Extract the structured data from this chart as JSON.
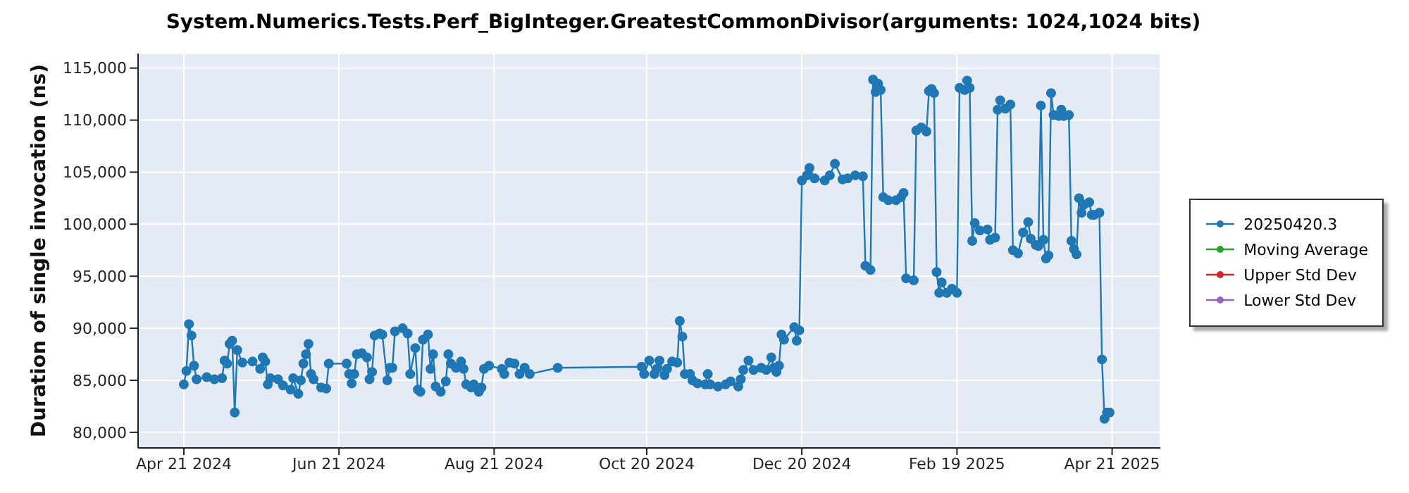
{
  "chart_data": {
    "type": "line",
    "title": "System.Numerics.Tests.Perf_BigInteger.GreatestCommonDivisor(arguments: 1024,1024 bits)",
    "ylabel": "Duration of single invocation (ns)",
    "x": [
      "2024-04-21",
      "2024-04-22",
      "2024-04-23",
      "2024-04-24",
      "2024-04-25",
      "2024-04-26",
      "2024-04-30",
      "2024-05-03",
      "2024-05-06",
      "2024-05-07",
      "2024-05-08",
      "2024-05-09",
      "2024-05-10",
      "2024-05-11",
      "2024-05-12",
      "2024-05-14",
      "2024-05-18",
      "2024-05-21",
      "2024-05-22",
      "2024-05-23",
      "2024-05-24",
      "2024-05-25",
      "2024-05-28",
      "2024-05-30",
      "2024-06-02",
      "2024-06-03",
      "2024-06-05",
      "2024-06-06",
      "2024-06-07",
      "2024-06-08",
      "2024-06-09",
      "2024-06-10",
      "2024-06-11",
      "2024-06-14",
      "2024-06-16",
      "2024-06-17",
      "2024-06-24",
      "2024-06-25",
      "2024-06-26",
      "2024-06-27",
      "2024-06-28",
      "2024-06-30",
      "2024-07-02",
      "2024-07-03",
      "2024-07-04",
      "2024-07-05",
      "2024-07-07",
      "2024-07-08",
      "2024-07-10",
      "2024-07-11",
      "2024-07-12",
      "2024-07-13",
      "2024-07-16",
      "2024-07-18",
      "2024-07-19",
      "2024-07-21",
      "2024-07-22",
      "2024-07-23",
      "2024-07-24",
      "2024-07-26",
      "2024-07-27",
      "2024-07-28",
      "2024-07-29",
      "2024-07-31",
      "2024-08-02",
      "2024-08-03",
      "2024-08-04",
      "2024-08-06",
      "2024-08-08",
      "2024-08-09",
      "2024-08-10",
      "2024-08-12",
      "2024-08-13",
      "2024-08-15",
      "2024-08-16",
      "2024-08-17",
      "2024-08-19",
      "2024-08-24",
      "2024-08-25",
      "2024-08-27",
      "2024-08-29",
      "2024-08-31",
      "2024-09-02",
      "2024-09-04",
      "2024-09-15",
      "2024-10-18",
      "2024-10-19",
      "2024-10-21",
      "2024-10-23",
      "2024-10-24",
      "2024-10-25",
      "2024-10-27",
      "2024-10-28",
      "2024-10-30",
      "2024-11-01",
      "2024-11-02",
      "2024-11-03",
      "2024-11-04",
      "2024-11-06",
      "2024-11-07",
      "2024-11-09",
      "2024-11-12",
      "2024-11-13",
      "2024-11-14",
      "2024-11-17",
      "2024-11-20",
      "2024-11-22",
      "2024-11-25",
      "2024-11-26",
      "2024-11-27",
      "2024-11-29",
      "2024-12-01",
      "2024-12-04",
      "2024-12-06",
      "2024-12-08",
      "2024-12-09",
      "2024-12-10",
      "2024-12-11",
      "2024-12-12",
      "2024-12-13",
      "2024-12-17",
      "2024-12-18",
      "2024-12-19",
      "2024-12-20",
      "2024-12-22",
      "2024-12-23",
      "2024-12-25",
      "2024-12-29",
      "2024-12-31",
      "2025-01-02",
      "2025-01-05",
      "2025-01-07",
      "2025-01-10",
      "2025-01-13",
      "2025-01-14",
      "2025-01-16",
      "2025-01-17",
      "2025-01-18",
      "2025-01-19",
      "2025-01-20",
      "2025-01-21",
      "2025-01-23",
      "2025-01-26",
      "2025-01-28",
      "2025-01-29",
      "2025-01-30",
      "2025-02-02",
      "2025-02-03",
      "2025-02-05",
      "2025-02-07",
      "2025-02-08",
      "2025-02-09",
      "2025-02-10",
      "2025-02-11",
      "2025-02-12",
      "2025-02-13",
      "2025-02-15",
      "2025-02-17",
      "2025-02-19",
      "2025-02-20",
      "2025-02-22",
      "2025-02-23",
      "2025-02-24",
      "2025-02-25",
      "2025-02-26",
      "2025-02-28",
      "2025-03-03",
      "2025-03-04",
      "2025-03-06",
      "2025-03-07",
      "2025-03-08",
      "2025-03-10",
      "2025-03-12",
      "2025-03-13",
      "2025-03-15",
      "2025-03-17",
      "2025-03-19",
      "2025-03-20",
      "2025-03-22",
      "2025-03-23",
      "2025-03-24",
      "2025-03-25",
      "2025-03-26",
      "2025-03-27",
      "2025-03-28",
      "2025-03-29",
      "2025-03-31",
      "2025-04-01",
      "2025-04-02",
      "2025-04-04",
      "2025-04-05",
      "2025-04-06",
      "2025-04-07",
      "2025-04-08",
      "2025-04-09",
      "2025-04-10",
      "2025-04-12",
      "2025-04-13",
      "2025-04-14",
      "2025-04-16",
      "2025-04-17",
      "2025-04-18",
      "2025-04-19",
      "2025-04-20"
    ],
    "series": [
      {
        "name": "20250420.3",
        "color": "#1f77b4",
        "values": [
          84600,
          85900,
          90400,
          89300,
          86400,
          85100,
          85300,
          85100,
          85200,
          86900,
          86600,
          88500,
          88800,
          81900,
          87900,
          86700,
          86800,
          86100,
          87200,
          86800,
          84600,
          85200,
          85100,
          84500,
          84100,
          85200,
          83700,
          85000,
          86600,
          87500,
          88500,
          85600,
          85100,
          84300,
          84200,
          86600,
          86600,
          85600,
          84700,
          85600,
          87500,
          87600,
          87200,
          85100,
          85800,
          89300,
          89500,
          89400,
          85000,
          86200,
          86200,
          89700,
          90000,
          89500,
          85600,
          88100,
          84100,
          83900,
          88900,
          89400,
          86100,
          87500,
          84400,
          83900,
          84900,
          87500,
          86600,
          86200,
          86800,
          86100,
          84600,
          84300,
          84600,
          83900,
          84300,
          86100,
          86400,
          86100,
          85600,
          86700,
          86600,
          85600,
          86200,
          85600,
          86200,
          86300,
          85600,
          86900,
          85600,
          86100,
          86900,
          85500,
          86100,
          86800,
          86700,
          90700,
          89200,
          85600,
          85600,
          85000,
          84700,
          84600,
          85600,
          84600,
          84400,
          84600,
          84900,
          84400,
          85100,
          86000,
          86900,
          86000,
          86200,
          86000,
          87200,
          86200,
          85800,
          86400,
          89400,
          88900,
          90100,
          88800,
          89800,
          104200,
          104700,
          105400,
          104400,
          104200,
          104700,
          105800,
          104300,
          104400,
          104700,
          104600,
          96000,
          95600,
          113900,
          112700,
          113500,
          112900,
          102600,
          102300,
          102300,
          102600,
          103000,
          94800,
          94600,
          109000,
          109300,
          108900,
          112800,
          113000,
          112600,
          95400,
          93400,
          94400,
          93400,
          93800,
          93400,
          113100,
          112900,
          113800,
          113100,
          98400,
          100100,
          99400,
          99500,
          98500,
          98700,
          111000,
          111900,
          111100,
          111500,
          97500,
          97200,
          99200,
          100200,
          98600,
          98000,
          97900,
          111400,
          98500,
          96700,
          97000,
          112600,
          110500,
          110400,
          111000,
          110400,
          110500,
          98400,
          97600,
          97100,
          102500,
          101100,
          101900,
          102100,
          100900,
          100900,
          101100,
          87000,
          81300,
          81900,
          81900
        ]
      },
      {
        "name": "Moving Average",
        "color": "#2ca02c",
        "values": [
          null,
          null,
          null,
          null,
          null,
          null,
          null,
          null,
          null,
          null,
          null,
          null,
          null,
          null,
          null,
          null,
          null,
          null,
          null,
          null,
          null,
          null,
          null,
          null,
          null,
          null,
          null,
          null,
          null,
          null,
          null,
          null,
          null,
          null,
          null,
          null,
          null,
          null,
          null,
          null,
          null,
          null,
          null,
          null,
          null,
          null,
          null,
          null,
          null,
          null,
          null,
          null,
          null,
          null,
          null,
          null,
          null,
          null,
          null,
          null,
          null,
          null,
          null,
          null,
          null,
          null,
          null,
          null,
          null,
          null,
          null,
          null,
          null,
          null,
          null,
          null,
          null,
          null,
          null,
          null,
          null,
          null,
          null,
          null,
          null,
          null,
          null,
          null,
          null,
          null,
          null,
          null,
          null,
          null,
          null,
          null,
          null,
          null,
          null,
          null,
          null,
          null,
          null,
          null,
          null,
          null,
          null,
          null,
          null,
          null,
          null,
          null,
          null,
          null,
          null,
          null,
          null,
          null,
          null,
          null,
          null,
          null,
          null,
          null,
          null,
          null,
          null,
          null,
          null,
          null,
          null,
          null,
          null,
          null,
          null,
          null,
          null,
          null,
          null,
          null,
          null,
          null,
          null,
          null,
          null,
          null,
          null,
          null,
          null,
          null,
          null,
          null,
          null,
          null,
          null,
          null,
          null,
          null,
          null,
          null,
          null,
          null,
          null,
          null,
          null,
          null,
          null,
          null,
          null,
          null,
          null,
          null,
          null,
          null,
          null,
          null,
          null,
          null,
          null,
          null,
          null,
          null,
          null,
          null,
          null,
          null,
          null,
          null,
          null,
          null,
          null,
          null,
          null,
          null,
          null,
          null,
          null,
          null,
          null,
          null,
          null,
          null,
          null,
          null
        ]
      },
      {
        "name": "Upper Std Dev",
        "color": "#d62728",
        "values": [
          null,
          null,
          null,
          null,
          null,
          null,
          null,
          null,
          null,
          null,
          null,
          null,
          null,
          null,
          null,
          null,
          null,
          null,
          null,
          null,
          null,
          null,
          null,
          null,
          null,
          null,
          null,
          null,
          null,
          null,
          null,
          null,
          null,
          null,
          null,
          null,
          null,
          null,
          null,
          null,
          null,
          null,
          null,
          null,
          null,
          null,
          null,
          null,
          null,
          null,
          null,
          null,
          null,
          null,
          null,
          null,
          null,
          null,
          null,
          null,
          null,
          null,
          null,
          null,
          null,
          null,
          null,
          null,
          null,
          null,
          null,
          null,
          null,
          null,
          null,
          null,
          null,
          null,
          null,
          null,
          null,
          null,
          null,
          null,
          null,
          null,
          null,
          null,
          null,
          null,
          null,
          null,
          null,
          null,
          null,
          null,
          null,
          null,
          null,
          null,
          null,
          null,
          null,
          null,
          null,
          null,
          null,
          null,
          null,
          null,
          null,
          null,
          null,
          null,
          null,
          null,
          null,
          null,
          null,
          null,
          null,
          null,
          null,
          null,
          null,
          null,
          null,
          null,
          null,
          null,
          null,
          null,
          null,
          null,
          null,
          null,
          null,
          null,
          null,
          null,
          null,
          null,
          null,
          null,
          null,
          null,
          null,
          null,
          null,
          null,
          null,
          null,
          null,
          null,
          null,
          null,
          null,
          null,
          null,
          null,
          null,
          null,
          null,
          null,
          null,
          null,
          null,
          null,
          null,
          null,
          null,
          null,
          null,
          null,
          null,
          null,
          null,
          null,
          null,
          null,
          null,
          null,
          null,
          null,
          null,
          null,
          null,
          null,
          null,
          null,
          null,
          null,
          null,
          null,
          null,
          null,
          null,
          null,
          null,
          null,
          null,
          null,
          null,
          null
        ]
      },
      {
        "name": "Lower Std Dev",
        "color": "#9467bd",
        "values": [
          null,
          null,
          null,
          null,
          null,
          null,
          null,
          null,
          null,
          null,
          null,
          null,
          null,
          null,
          null,
          null,
          null,
          null,
          null,
          null,
          null,
          null,
          null,
          null,
          null,
          null,
          null,
          null,
          null,
          null,
          null,
          null,
          null,
          null,
          null,
          null,
          null,
          null,
          null,
          null,
          null,
          null,
          null,
          null,
          null,
          null,
          null,
          null,
          null,
          null,
          null,
          null,
          null,
          null,
          null,
          null,
          null,
          null,
          null,
          null,
          null,
          null,
          null,
          null,
          null,
          null,
          null,
          null,
          null,
          null,
          null,
          null,
          null,
          null,
          null,
          null,
          null,
          null,
          null,
          null,
          null,
          null,
          null,
          null,
          null,
          null,
          null,
          null,
          null,
          null,
          null,
          null,
          null,
          null,
          null,
          null,
          null,
          null,
          null,
          null,
          null,
          null,
          null,
          null,
          null,
          null,
          null,
          null,
          null,
          null,
          null,
          null,
          null,
          null,
          null,
          null,
          null,
          null,
          null,
          null,
          null,
          null,
          null,
          null,
          null,
          null,
          null,
          null,
          null,
          null,
          null,
          null,
          null,
          null,
          null,
          null,
          null,
          null,
          null,
          null,
          null,
          null,
          null,
          null,
          null,
          null,
          null,
          null,
          null,
          null,
          null,
          null,
          null,
          null,
          null,
          null,
          null,
          null,
          null,
          null,
          null,
          null,
          null,
          null,
          null,
          null,
          null,
          null,
          null,
          null,
          null,
          null,
          null,
          null,
          null,
          null,
          null,
          null,
          null,
          null,
          null,
          null,
          null,
          null,
          null,
          null,
          null,
          null,
          null,
          null,
          null,
          null,
          null,
          null,
          null,
          null,
          null,
          null,
          null,
          null,
          null,
          null,
          null,
          null
        ]
      }
    ],
    "xlim": [
      "2024-04-03",
      "2025-05-10"
    ],
    "xticks": [
      {
        "value": "2024-04-21",
        "label": "Apr 21 2024"
      },
      {
        "value": "2024-06-21",
        "label": "Jun 21 2024"
      },
      {
        "value": "2024-08-21",
        "label": "Aug 21 2024"
      },
      {
        "value": "2024-10-20",
        "label": "Oct 20 2024"
      },
      {
        "value": "2024-12-20",
        "label": "Dec 20 2024"
      },
      {
        "value": "2025-02-19",
        "label": "Feb 19 2025"
      },
      {
        "value": "2025-04-21",
        "label": "Apr 21 2025"
      }
    ],
    "ylim": [
      78500,
      116400
    ],
    "yticks": [
      {
        "value": 80000,
        "label": "80,000"
      },
      {
        "value": 85000,
        "label": "85,000"
      },
      {
        "value": 90000,
        "label": "90,000"
      },
      {
        "value": 95000,
        "label": "95,000"
      },
      {
        "value": 100000,
        "label": "100,000"
      },
      {
        "value": 105000,
        "label": "105,000"
      },
      {
        "value": 110000,
        "label": "110,000"
      },
      {
        "value": 115000,
        "label": "115,000"
      }
    ],
    "grid": true,
    "legend": "right",
    "marker": "circle",
    "line_style": "solid"
  }
}
